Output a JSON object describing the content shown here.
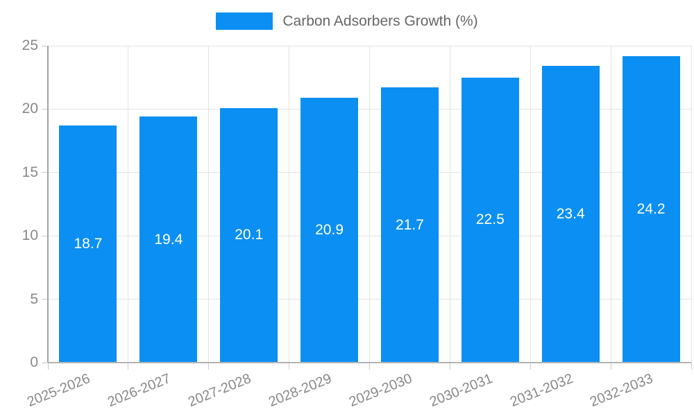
{
  "legend": {
    "label": "Carbon Adsorbers Growth (%)"
  },
  "colors": {
    "bar": "#0b8ff2",
    "grid": "#e3e3e3",
    "y_axis": "#a3a3a3",
    "x_axis": "#b3b3b3",
    "tick": "#c9c9c9",
    "tick_label": "#888888",
    "legend_text": "#666666",
    "bar_label": "#ffffff",
    "background": "#ffffff"
  },
  "chart_data": {
    "type": "bar",
    "title": "",
    "xlabel": "",
    "ylabel": "",
    "categories": [
      "2025-2026",
      "2026-2027",
      "2027-2028",
      "2028-2029",
      "2029-2030",
      "2030-2031",
      "2031-2032",
      "2032-2033"
    ],
    "series": [
      {
        "name": "Carbon Adsorbers Growth (%)",
        "values": [
          18.7,
          19.4,
          20.1,
          20.9,
          21.7,
          22.5,
          23.4,
          24.2
        ]
      }
    ],
    "value_labels": [
      "18.7",
      "19.4",
      "20.1",
      "20.9",
      "21.7",
      "22.5",
      "23.4",
      "24.2"
    ],
    "value_label_position": "inside-center",
    "ylim": [
      0,
      25
    ],
    "yticks": [
      0,
      5,
      10,
      15,
      20,
      25
    ],
    "ytick_labels": [
      "0",
      "5",
      "10",
      "15",
      "20",
      "25"
    ],
    "grid": true,
    "legend_position": "top-center",
    "x_label_rotation_deg": -22
  }
}
